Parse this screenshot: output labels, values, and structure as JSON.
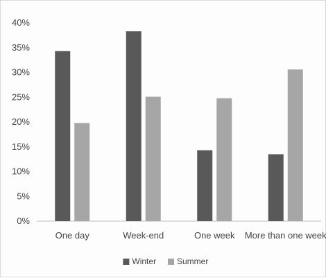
{
  "chart_data": {
    "type": "bar",
    "categories": [
      "One day",
      "Week-end",
      "One week",
      "More than one week"
    ],
    "series": [
      {
        "name": "Winter",
        "values": [
          34.3,
          38.3,
          14.3,
          13.5
        ],
        "color": "#595959"
      },
      {
        "name": "Summer",
        "values": [
          19.8,
          25.1,
          24.8,
          30.6
        ],
        "color": "#a6a6a6"
      }
    ],
    "ylim": [
      0,
      40
    ],
    "yticks": [
      "0%",
      "5%",
      "10%",
      "15%",
      "20%",
      "25%",
      "30%",
      "35%",
      "40%"
    ],
    "ytick_values": [
      0,
      5,
      10,
      15,
      20,
      25,
      30,
      35,
      40
    ],
    "grid": false,
    "legend_position": "bottom-center",
    "title": "",
    "xlabel": "",
    "ylabel": ""
  }
}
